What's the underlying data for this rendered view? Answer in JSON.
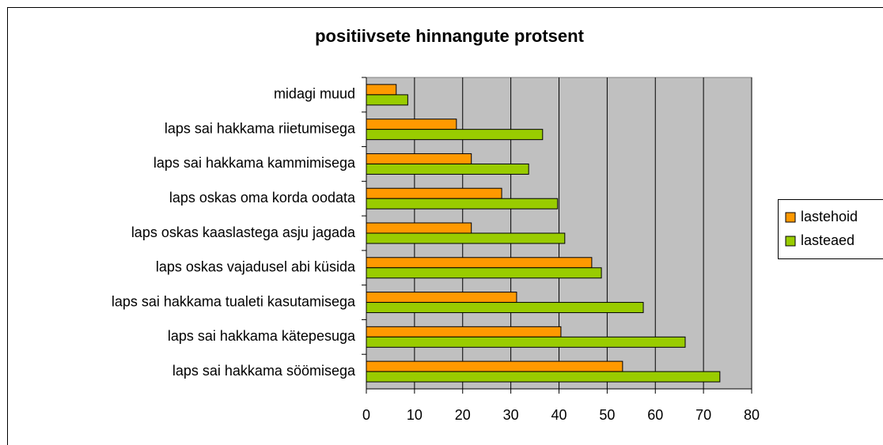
{
  "chart_data": {
    "type": "bar",
    "orientation": "horizontal",
    "title": "positiivsete hinnangute protsent",
    "categories": [
      "midagi muud",
      "laps sai hakkama riietumisega",
      "laps sai hakkama kammimisega",
      "laps oskas oma korda oodata",
      "laps oskas kaaslastega asju jagada",
      "laps oskas vajadusel abi küsida",
      "laps sai hakkama tualeti kasutamisega",
      "laps sai hakkama kätepesuga",
      "laps sai hakkama söömisega"
    ],
    "series": [
      {
        "name": "lastehoid",
        "color": "#ff9900",
        "values": [
          6.2,
          18.7,
          21.8,
          28.1,
          21.8,
          46.8,
          31.2,
          40.4,
          53.2
        ]
      },
      {
        "name": "lasteaed",
        "color": "#99cc00",
        "values": [
          8.6,
          36.6,
          33.7,
          39.7,
          41.2,
          48.8,
          57.5,
          66.2,
          73.4
        ]
      }
    ],
    "xlim": [
      0,
      80
    ],
    "xticks": [
      0,
      10,
      20,
      30,
      40,
      50,
      60,
      70,
      80
    ],
    "grid": true,
    "legend": "right"
  }
}
